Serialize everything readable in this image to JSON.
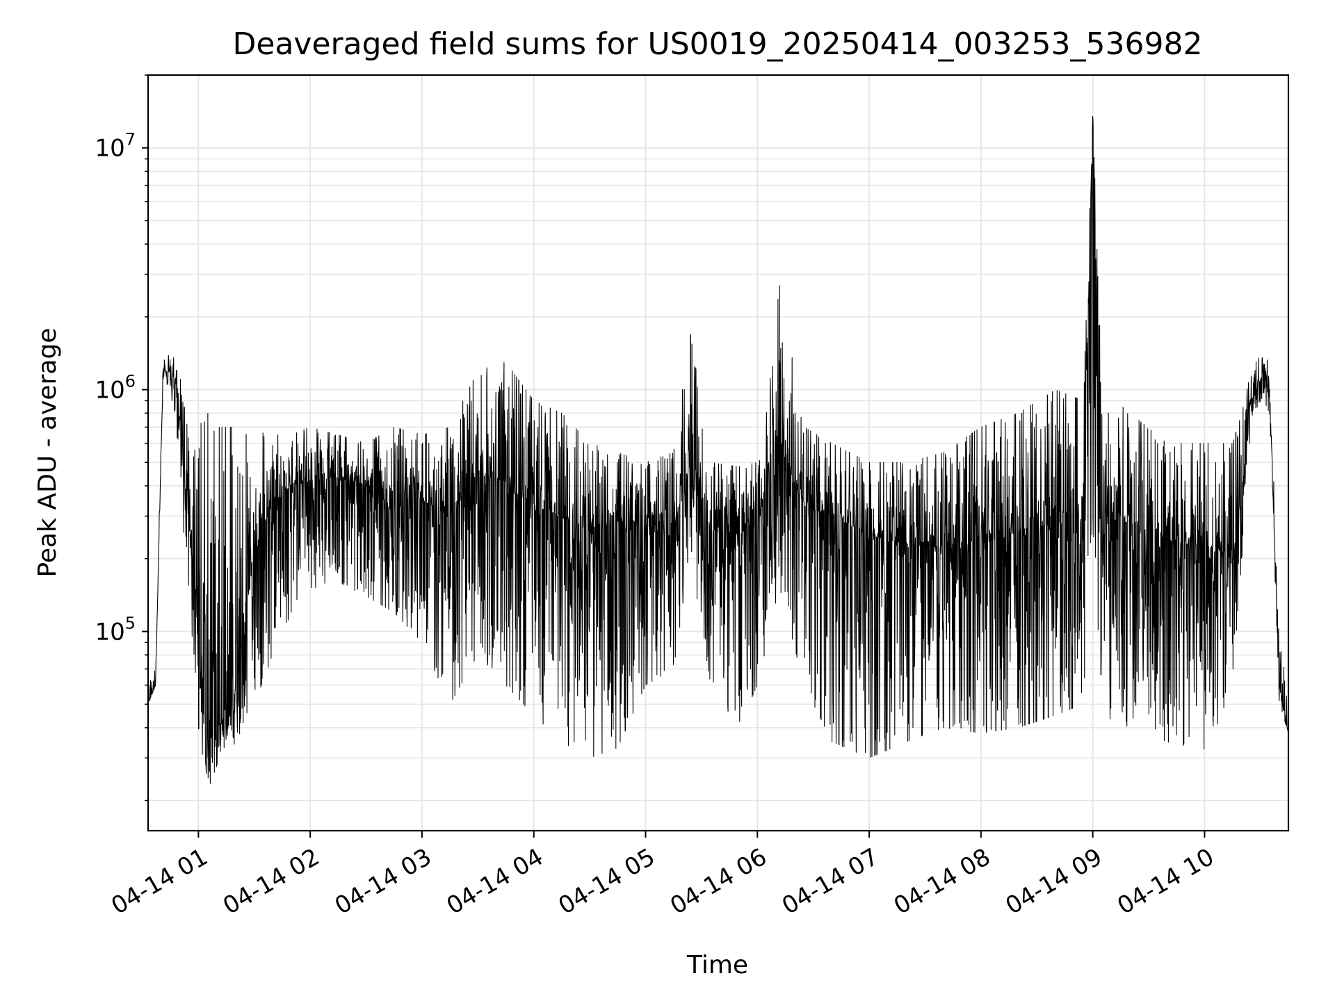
{
  "chart_data": {
    "type": "line",
    "title": "Deaveraged field sums for US0019_20250414_003253_536982",
    "xlabel": "Time",
    "ylabel": "Peak ADU - average",
    "y_scale": "log",
    "xlim": [
      "2025-04-14 00:33",
      "2025-04-14 10:45"
    ],
    "ylim": [
      15000,
      20000000
    ],
    "grid": true,
    "line_color": "#000000",
    "grid_color": "#e6e6e6",
    "x_ticks": [
      "04-14 01",
      "04-14 02",
      "04-14 03",
      "04-14 04",
      "04-14 05",
      "04-14 06",
      "04-14 07",
      "04-14 08",
      "04-14 09",
      "04-14 10"
    ],
    "y_ticks": [
      {
        "base": "10",
        "exp": "5",
        "value": 100000
      },
      {
        "base": "10",
        "exp": "6",
        "value": 1000000
      },
      {
        "base": "10",
        "exp": "7",
        "value": 10000000
      }
    ],
    "series": [
      {
        "x": [
          "2025-04-14 00:33",
          "2025-04-14 00:37",
          "2025-04-14 00:41",
          "2025-04-14 00:45",
          "2025-04-14 00:49",
          "2025-04-14 00:53",
          "2025-04-14 00:57",
          "2025-04-14 01:00",
          "2025-04-14 01:05",
          "2025-04-14 01:10",
          "2025-04-14 01:15",
          "2025-04-14 01:20",
          "2025-04-14 01:30",
          "2025-04-14 01:40",
          "2025-04-14 01:50",
          "2025-04-14 02:00",
          "2025-04-14 02:15",
          "2025-04-14 02:30",
          "2025-04-14 02:45",
          "2025-04-14 03:00",
          "2025-04-14 03:15",
          "2025-04-14 03:30",
          "2025-04-14 03:45",
          "2025-04-14 04:00",
          "2025-04-14 04:15",
          "2025-04-14 04:30",
          "2025-04-14 04:45",
          "2025-04-14 05:00",
          "2025-04-14 05:15",
          "2025-04-14 05:24",
          "2025-04-14 05:35",
          "2025-04-14 05:50",
          "2025-04-14 06:00",
          "2025-04-14 06:12",
          "2025-04-14 06:25",
          "2025-04-14 06:40",
          "2025-04-14 07:00",
          "2025-04-14 07:20",
          "2025-04-14 07:40",
          "2025-04-14 08:00",
          "2025-04-14 08:20",
          "2025-04-14 08:40",
          "2025-04-14 08:55",
          "2025-04-14 09:00",
          "2025-04-14 09:05",
          "2025-04-14 09:20",
          "2025-04-14 09:40",
          "2025-04-14 10:00",
          "2025-04-14 10:15",
          "2025-04-14 10:20",
          "2025-04-14 10:25",
          "2025-04-14 10:30",
          "2025-04-14 10:35",
          "2025-04-14 10:40",
          "2025-04-14 10:45"
        ],
        "y": [
          50000,
          60000,
          1200000,
          1200000,
          1000000,
          400000,
          200000,
          80000,
          35000,
          40000,
          45000,
          60000,
          200000,
          350000,
          400000,
          420000,
          430000,
          400000,
          380000,
          350000,
          300000,
          450000,
          400000,
          330000,
          300000,
          260000,
          280000,
          270000,
          270000,
          500000,
          260000,
          250000,
          280000,
          600000,
          330000,
          300000,
          250000,
          230000,
          220000,
          230000,
          260000,
          280000,
          300000,
          14000000,
          300000,
          280000,
          240000,
          220000,
          200000,
          350000,
          900000,
          1100000,
          1000000,
          60000,
          38000
        ],
        "lo": [
          50000,
          60000,
          1100000,
          1000000,
          600000,
          200000,
          80000,
          40000,
          22000,
          28000,
          30000,
          35000,
          50000,
          80000,
          120000,
          150000,
          160000,
          140000,
          120000,
          90000,
          50000,
          80000,
          60000,
          45000,
          35000,
          30000,
          33000,
          60000,
          70000,
          200000,
          60000,
          40000,
          60000,
          150000,
          60000,
          35000,
          30000,
          35000,
          40000,
          38000,
          40000,
          45000,
          50000,
          300000,
          45000,
          40000,
          35000,
          30000,
          60000,
          200000,
          700000,
          900000,
          700000,
          50000,
          38000
        ],
        "hi": [
          60000,
          70000,
          1400000,
          1400000,
          1300000,
          800000,
          500000,
          700000,
          800000,
          700000,
          700000,
          700000,
          700000,
          650000,
          650000,
          700000,
          650000,
          600000,
          700000,
          650000,
          700000,
          1200000,
          1300000,
          900000,
          800000,
          600000,
          550000,
          500000,
          550000,
          1700000,
          500000,
          480000,
          500000,
          2700000,
          700000,
          600000,
          500000,
          500000,
          550000,
          700000,
          800000,
          1000000,
          900000,
          14000000,
          1000000,
          800000,
          600000,
          600000,
          600000,
          800000,
          1200000,
          1400000,
          1300000,
          90000,
          60000
        ]
      }
    ]
  }
}
